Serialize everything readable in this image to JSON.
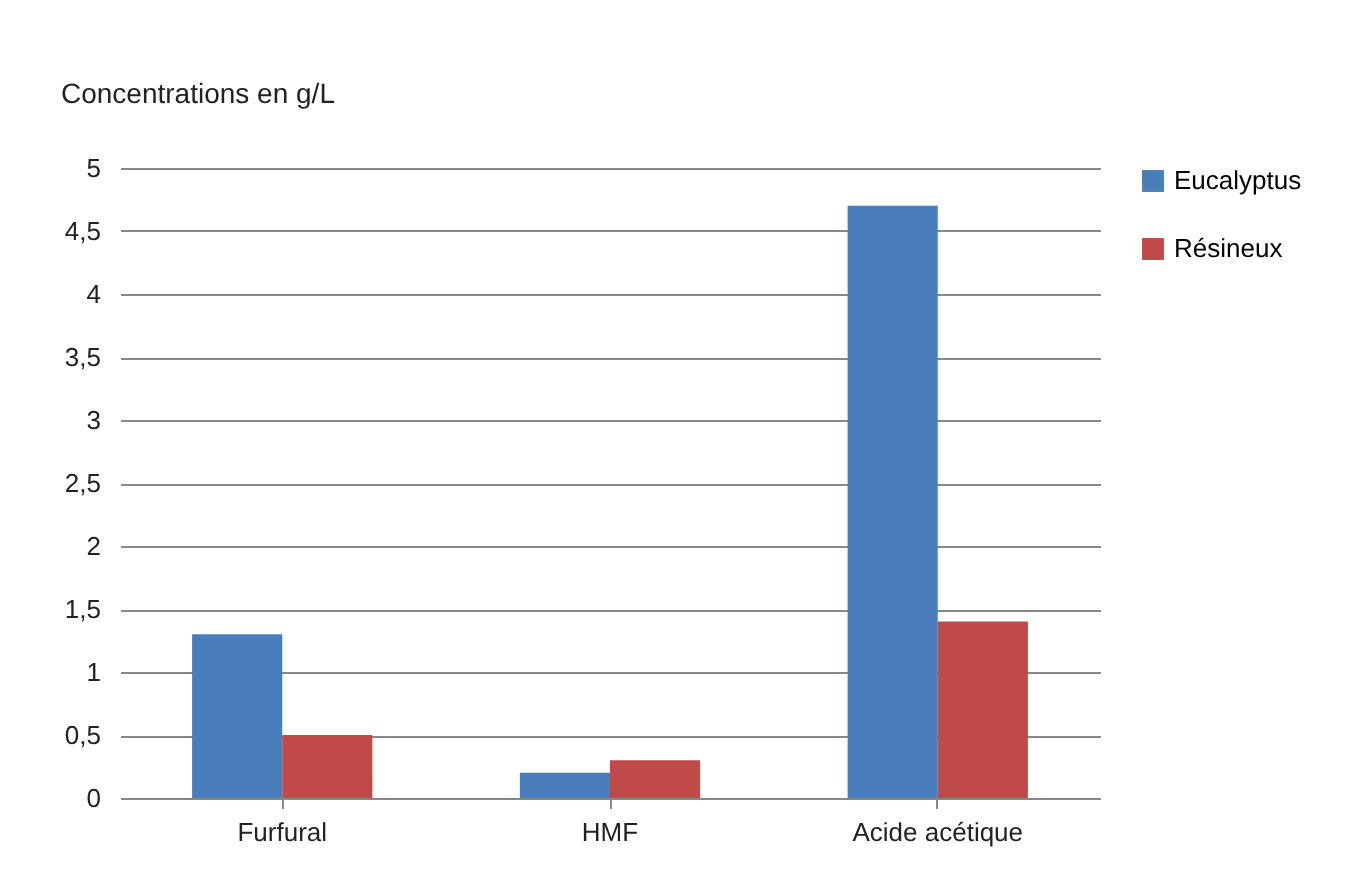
{
  "chart_data": {
    "type": "bar",
    "ylabel": "Concentrations en g/L",
    "categories": [
      "Furfural",
      "HMF",
      "Acide acétique"
    ],
    "series": [
      {
        "name": "Eucalyptus",
        "color": "#4a7ebb",
        "values": [
          1.3,
          0.2,
          4.7
        ]
      },
      {
        "name": "Résineux",
        "color": "#be4b48",
        "values": [
          0.5,
          0.3,
          1.4
        ]
      }
    ],
    "ylim": [
      0,
      5
    ],
    "yticks": [
      0,
      {
        "value": 0.5,
        "label": "0,5"
      },
      1,
      {
        "value": 1.5,
        "label": "1,5"
      },
      2,
      {
        "value": 2.5,
        "label": "2,5"
      },
      3,
      {
        "value": 3.5,
        "label": "3,5"
      },
      4,
      {
        "value": 4.5,
        "label": "4,5"
      },
      5
    ],
    "grid": "y",
    "legend": "right"
  }
}
